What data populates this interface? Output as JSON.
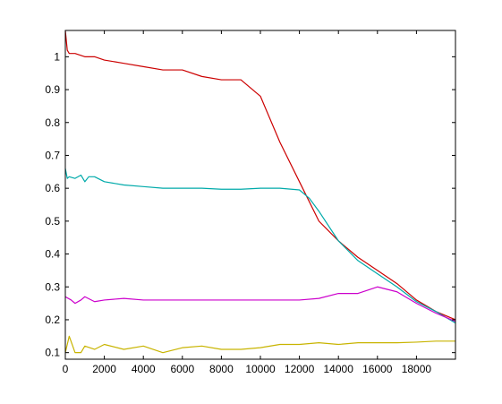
{
  "chart_data": {
    "type": "line",
    "title": "",
    "xlabel": "",
    "ylabel": "",
    "xlim": [
      0,
      20000
    ],
    "ylim": [
      0.08,
      1.08
    ],
    "grid": false,
    "x_ticks": [
      0,
      2000,
      4000,
      6000,
      8000,
      10000,
      12000,
      14000,
      16000,
      18000
    ],
    "y_ticks": [
      0.1,
      0.2,
      0.3,
      0.4,
      0.5,
      0.6,
      0.7,
      0.8,
      0.9,
      1
    ],
    "series": [
      {
        "color": "#cc0000",
        "x": [
          0,
          100,
          200,
          500,
          1000,
          1500,
          2000,
          3000,
          4000,
          5000,
          6000,
          7000,
          8000,
          9000,
          10000,
          11000,
          12000,
          13000,
          14000,
          15000,
          16000,
          17000,
          18000,
          19000,
          20000
        ],
        "y": [
          1.08,
          1.02,
          1.01,
          1.01,
          1.0,
          1.0,
          0.99,
          0.98,
          0.97,
          0.96,
          0.96,
          0.94,
          0.93,
          0.93,
          0.88,
          0.74,
          0.62,
          0.5,
          0.44,
          0.39,
          0.35,
          0.31,
          0.26,
          0.225,
          0.2
        ]
      },
      {
        "color": "#00aaaa",
        "x": [
          0,
          100,
          200,
          500,
          800,
          1000,
          1200,
          1500,
          2000,
          3000,
          4000,
          5000,
          6000,
          7000,
          8000,
          9000,
          10000,
          11000,
          12000,
          12500,
          13000,
          14000,
          15000,
          16000,
          17000,
          18000,
          19000,
          20000
        ],
        "y": [
          0.66,
          0.63,
          0.635,
          0.63,
          0.64,
          0.62,
          0.635,
          0.635,
          0.62,
          0.61,
          0.605,
          0.6,
          0.6,
          0.6,
          0.597,
          0.597,
          0.6,
          0.6,
          0.595,
          0.57,
          0.53,
          0.44,
          0.38,
          0.34,
          0.3,
          0.255,
          0.225,
          0.19
        ]
      },
      {
        "color": "#cc00cc",
        "x": [
          0,
          300,
          500,
          800,
          1000,
          1500,
          2000,
          3000,
          4000,
          5000,
          6000,
          8000,
          10000,
          11000,
          12000,
          13000,
          14000,
          15000,
          16000,
          17000,
          18000,
          19000,
          20000
        ],
        "y": [
          0.27,
          0.26,
          0.25,
          0.26,
          0.27,
          0.255,
          0.26,
          0.265,
          0.26,
          0.26,
          0.26,
          0.26,
          0.26,
          0.26,
          0.26,
          0.265,
          0.28,
          0.28,
          0.3,
          0.285,
          0.25,
          0.22,
          0.195
        ]
      },
      {
        "color": "#c8b400",
        "x": [
          0,
          200,
          500,
          800,
          1000,
          1500,
          2000,
          3000,
          4000,
          5000,
          6000,
          7000,
          8000,
          9000,
          10000,
          11000,
          12000,
          13000,
          14000,
          15000,
          16000,
          17000,
          18000,
          19000,
          20000
        ],
        "y": [
          0.1,
          0.15,
          0.1,
          0.1,
          0.12,
          0.11,
          0.125,
          0.11,
          0.12,
          0.1,
          0.115,
          0.12,
          0.11,
          0.11,
          0.115,
          0.125,
          0.125,
          0.13,
          0.125,
          0.13,
          0.13,
          0.13,
          0.132,
          0.135,
          0.135
        ]
      }
    ]
  }
}
